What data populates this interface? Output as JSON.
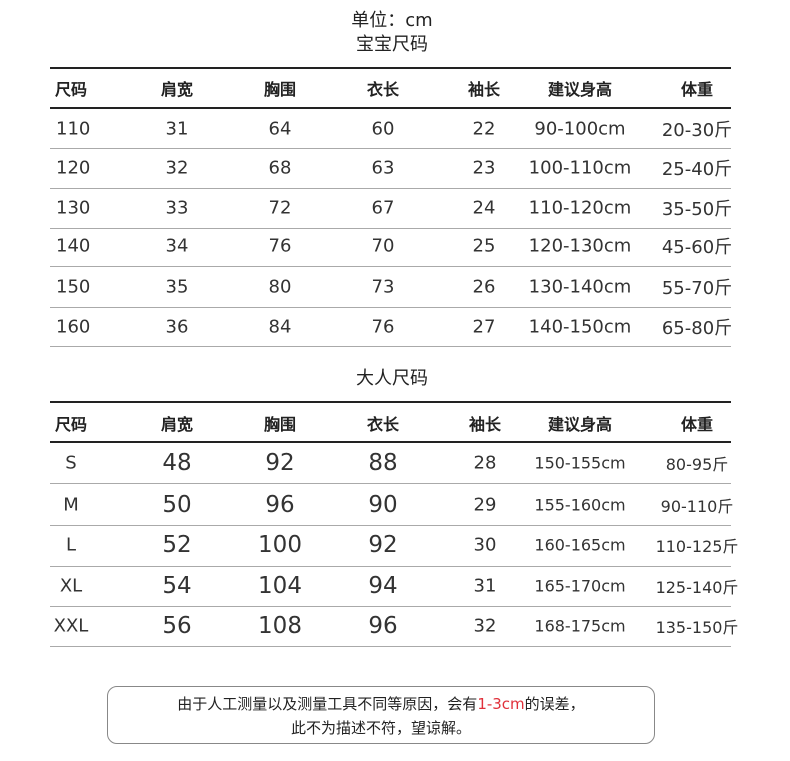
{
  "unit_label": "单位：cm",
  "kids": {
    "title": "宝宝尺码",
    "headers": [
      "尺码",
      "肩宽",
      "胸围",
      "衣长",
      "袖长",
      "建议身高",
      "体重"
    ],
    "rows": [
      [
        "110",
        "31",
        "64",
        "60",
        "22",
        "90-100cm",
        "20-30斤"
      ],
      [
        "120",
        "32",
        "68",
        "63",
        "23",
        "100-110cm",
        "25-40斤"
      ],
      [
        "130",
        "33",
        "72",
        "67",
        "24",
        "110-120cm",
        "35-50斤"
      ],
      [
        "140",
        "34",
        "76",
        "70",
        "25",
        "120-130cm",
        "45-60斤"
      ],
      [
        "150",
        "35",
        "80",
        "73",
        "26",
        "130-140cm",
        "55-70斤"
      ],
      [
        "160",
        "36",
        "84",
        "76",
        "27",
        "140-150cm",
        "65-80斤"
      ]
    ]
  },
  "adults": {
    "title": "大人尺码",
    "headers": [
      "尺码",
      "肩宽",
      "胸围",
      "衣长",
      "袖长",
      "建议身高",
      "体重"
    ],
    "rows": [
      [
        "S",
        "48",
        "92",
        "88",
        "28",
        "150-155cm",
        "80-95斤"
      ],
      [
        "M",
        "50",
        "96",
        "90",
        "29",
        "155-160cm",
        "90-110斤"
      ],
      [
        "L",
        "52",
        "100",
        "92",
        "30",
        "160-165cm",
        "110-125斤"
      ],
      [
        "XL",
        "54",
        "104",
        "94",
        "31",
        "165-170cm",
        "125-140斤"
      ],
      [
        "XXL",
        "56",
        "108",
        "96",
        "32",
        "168-175cm",
        "135-150斤"
      ]
    ]
  },
  "note": {
    "line1_before": "由于人工测量以及测量工具不同等原因，会有",
    "line1_highlight": "1-3cm",
    "line1_after": "的误差，",
    "line2": "此不为描述不符，望谅解。",
    "highlight_color": "#e0303a"
  }
}
